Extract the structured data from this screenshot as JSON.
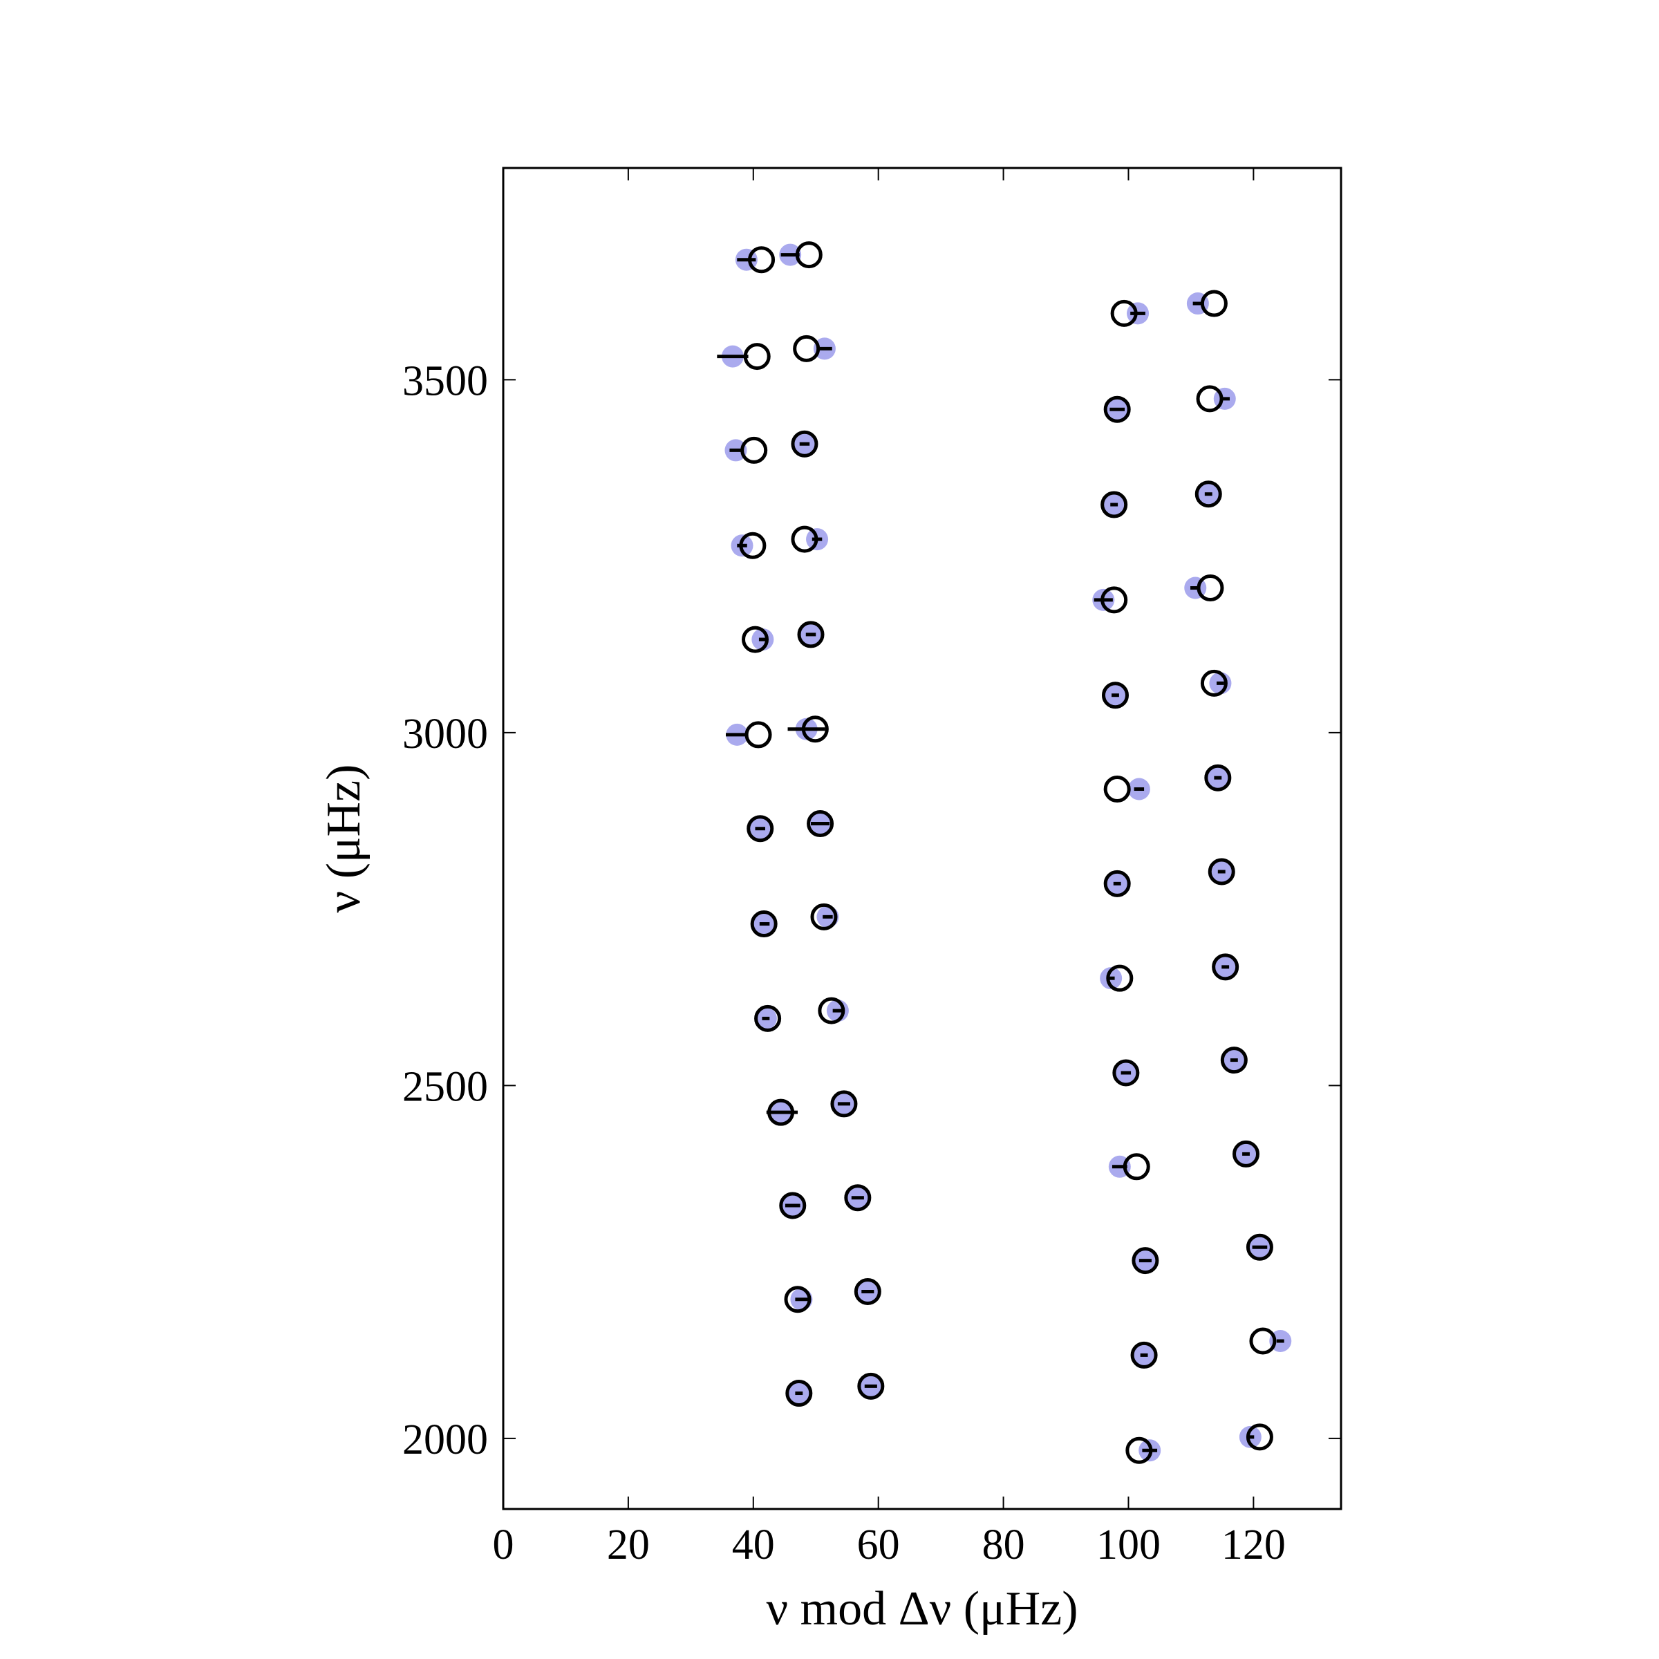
{
  "chart_data": {
    "type": "scatter",
    "xlabel": "ν mod Δν (μHz)",
    "ylabel": "ν (μHz)",
    "xlim": [
      0,
      134
    ],
    "ylim": [
      1900,
      3800
    ],
    "xticks": [
      0,
      20,
      40,
      60,
      80,
      100,
      120
    ],
    "yticks": [
      2000,
      2500,
      3000,
      3500
    ],
    "series": [
      {
        "color": "#aaaaee",
        "marker": "filled",
        "x": [
          38.9,
          36.7,
          37.2,
          38.2,
          41.5,
          37.4,
          41.1,
          41.8,
          42.0,
          44.6,
          46.3,
          47.7,
          47.3,
          45.9,
          51.4,
          48.2,
          50.2,
          49.2,
          48.5,
          50.7,
          51.9,
          53.5,
          54.5,
          56.7,
          58.3,
          58.8,
          101.5,
          98.2,
          97.7,
          96.0,
          97.9,
          101.7,
          98.2,
          97.2,
          99.6,
          98.6,
          102.7,
          102.5,
          103.4,
          111.1,
          115.4,
          112.8,
          110.7,
          114.7,
          114.3,
          114.9,
          115.5,
          116.9,
          118.8,
          121.0,
          124.3,
          119.5
        ],
        "y": [
          3670,
          3533,
          3400,
          3265,
          3132,
          2997,
          2864,
          2729,
          2595,
          2462,
          2330,
          2197,
          2064,
          3677,
          3544,
          3409,
          3274,
          3139,
          3005,
          2871,
          2739,
          2606,
          2474,
          2341,
          2208,
          2074,
          3594,
          3458,
          3323,
          3188,
          3053,
          2920,
          2786,
          2652,
          2518,
          2385,
          2252,
          2118,
          1983,
          3608,
          3473,
          3338,
          3205,
          3070,
          2936,
          2803,
          2668,
          2536,
          2403,
          2271,
          2138,
          2002
        ],
        "xerr": [
          1.5,
          2.5,
          1,
          0.8,
          0.6,
          1.8,
          0.8,
          0.8,
          0.6,
          2.5,
          1.2,
          1,
          0.6,
          1.5,
          1.2,
          0.8,
          0.8,
          0.8,
          3,
          1.5,
          0.8,
          0.8,
          1,
          1,
          1,
          1,
          1.2,
          1.2,
          0.6,
          1.5,
          0.6,
          0.8,
          0.6,
          0.6,
          0.8,
          1.2,
          1,
          0.6,
          1.2,
          0.8,
          0.8,
          0.6,
          0.8,
          0.6,
          0.6,
          0.6,
          0.6,
          0.6,
          0.6,
          1.2,
          0.6,
          0.6
        ],
        "errcolor": "#000000"
      },
      {
        "color": "#000000",
        "marker": "open",
        "x": [
          41.3,
          40.6,
          40.1,
          39.9,
          40.3,
          40.8,
          41.1,
          41.7,
          42.3,
          44.4,
          46.3,
          47.1,
          47.3,
          48.9,
          48.5,
          48.2,
          48.2,
          49.2,
          49.9,
          50.7,
          51.3,
          52.5,
          54.5,
          56.7,
          58.3,
          58.8,
          99.3,
          98.2,
          97.7,
          97.7,
          97.9,
          98.2,
          98.2,
          98.6,
          99.6,
          101.3,
          102.7,
          102.5,
          101.7,
          113.7,
          113.0,
          112.8,
          113.1,
          113.7,
          114.3,
          114.9,
          115.5,
          116.9,
          118.8,
          121.0,
          121.5,
          121.0
        ],
        "y": [
          3670,
          3533,
          3400,
          3265,
          3132,
          2997,
          2864,
          2729,
          2595,
          2462,
          2330,
          2197,
          2064,
          3677,
          3544,
          3409,
          3274,
          3139,
          3005,
          2871,
          2739,
          2606,
          2474,
          2341,
          2208,
          2074,
          3594,
          3458,
          3323,
          3188,
          3053,
          2920,
          2786,
          2652,
          2518,
          2385,
          2252,
          2118,
          1983,
          3608,
          3473,
          3338,
          3205,
          3070,
          2936,
          2803,
          2668,
          2536,
          2403,
          2271,
          2138,
          2002
        ]
      }
    ]
  }
}
